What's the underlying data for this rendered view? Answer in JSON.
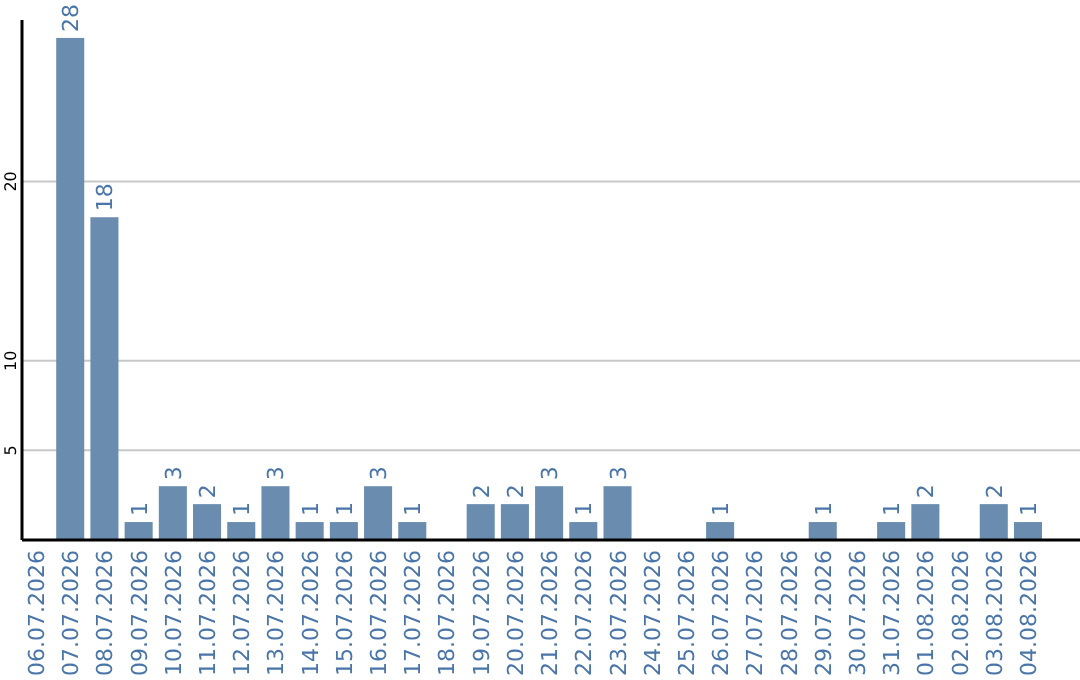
{
  "chart_data": {
    "type": "bar",
    "categories": [
      "06.07.2026",
      "07.07.2026",
      "08.07.2026",
      "09.07.2026",
      "10.07.2026",
      "11.07.2026",
      "12.07.2026",
      "13.07.2026",
      "14.07.2026",
      "15.07.2026",
      "16.07.2026",
      "17.07.2026",
      "18.07.2026",
      "19.07.2026",
      "20.07.2026",
      "21.07.2026",
      "22.07.2026",
      "23.07.2026",
      "24.07.2026",
      "25.07.2026",
      "26.07.2026",
      "27.07.2026",
      "28.07.2026",
      "29.07.2026",
      "30.07.2026",
      "31.07.2026",
      "01.08.2026",
      "02.08.2026",
      "03.08.2026",
      "04.08.2026"
    ],
    "values": [
      0,
      28,
      18,
      1,
      3,
      2,
      1,
      3,
      1,
      1,
      3,
      1,
      0,
      2,
      2,
      3,
      1,
      3,
      0,
      0,
      1,
      0,
      0,
      1,
      0,
      1,
      2,
      0,
      2,
      1
    ],
    "value_labels": [
      null,
      "28",
      "18",
      "1",
      "3",
      "2",
      "1",
      "3",
      "1",
      "1",
      "3",
      "1",
      null,
      "2",
      "2",
      "3",
      "1",
      "3",
      null,
      null,
      "1",
      null,
      null,
      "1",
      null,
      "1",
      "2",
      null,
      "2",
      "1"
    ],
    "color": "#6a8caf",
    "ylim": [
      0,
      29
    ],
    "yticks": [
      5,
      10,
      20
    ],
    "grid": "y"
  }
}
